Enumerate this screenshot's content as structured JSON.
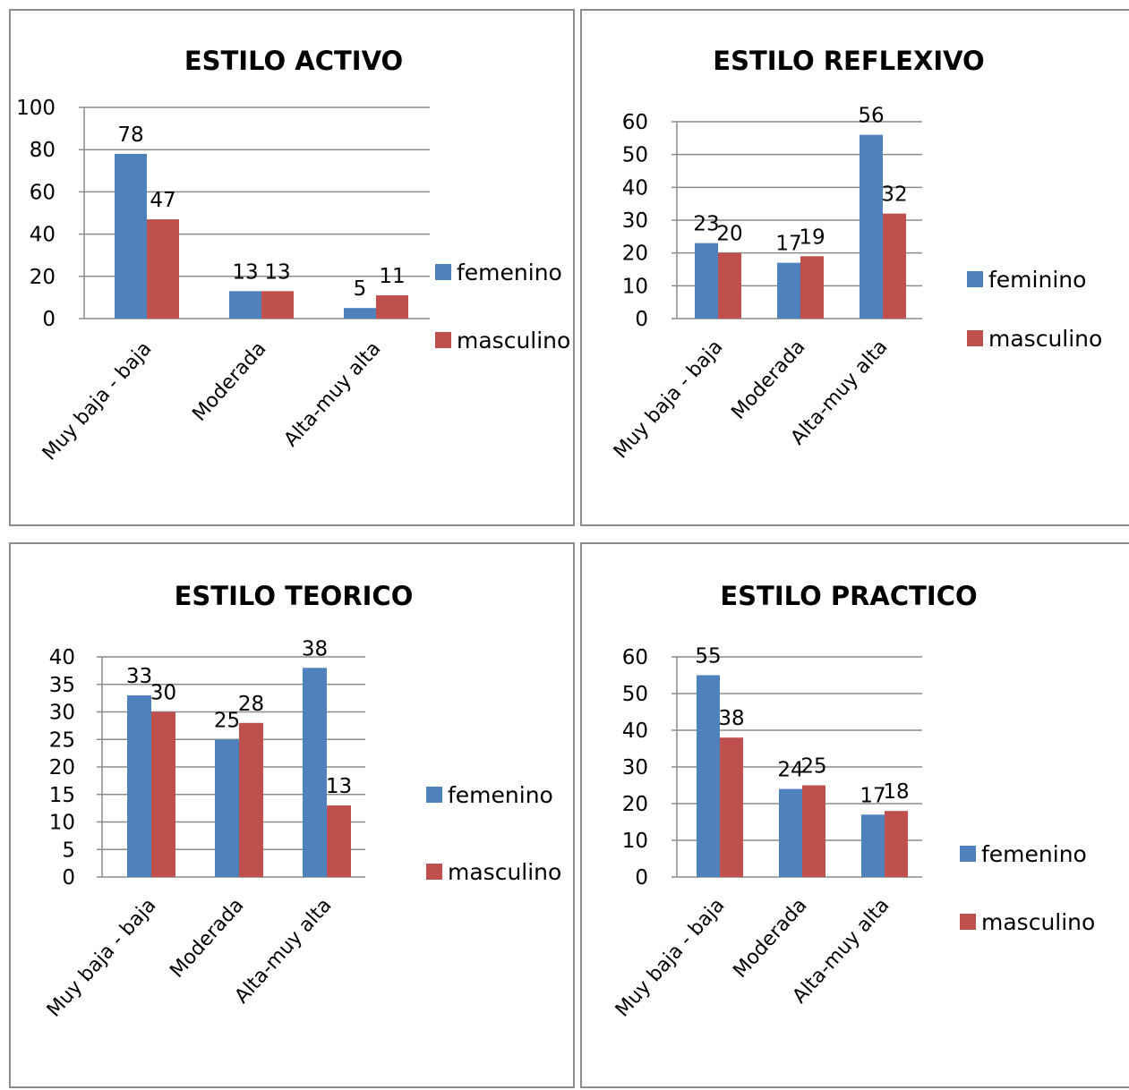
{
  "chart_data": [
    {
      "type": "bar",
      "title": "ESTILO ACTIVO",
      "categories": [
        "Muy baja - baja",
        "Moderada",
        "Alta-muy alta"
      ],
      "series": [
        {
          "name": "femenino",
          "values": [
            78,
            13,
            5
          ],
          "color": "#4f81bd"
        },
        {
          "name": "masculino",
          "values": [
            47,
            13,
            11
          ],
          "color": "#c0504d"
        }
      ],
      "ylim": [
        0,
        100
      ],
      "yticks": [
        0,
        20,
        40,
        60,
        80,
        100
      ],
      "grid": true,
      "legend": "right"
    },
    {
      "type": "bar",
      "title": "ESTILO REFLEXIVO",
      "categories": [
        "Muy baja - baja",
        "Moderada",
        "Alta-muy alta"
      ],
      "series": [
        {
          "name": "feminino",
          "values": [
            23,
            17,
            56
          ],
          "color": "#4f81bd"
        },
        {
          "name": "masculino",
          "values": [
            20,
            19,
            32
          ],
          "color": "#c0504d"
        }
      ],
      "ylim": [
        0,
        60
      ],
      "yticks": [
        0,
        10,
        20,
        30,
        40,
        50,
        60
      ],
      "grid": true,
      "legend": "right"
    },
    {
      "type": "bar",
      "title": "ESTILO TEORICO",
      "categories": [
        "Muy baja - baja",
        "Moderada",
        "Alta-muy alta"
      ],
      "series": [
        {
          "name": "femenino",
          "values": [
            33,
            25,
            38
          ],
          "color": "#4f81bd"
        },
        {
          "name": "masculino",
          "values": [
            30,
            28,
            13
          ],
          "color": "#c0504d"
        }
      ],
      "ylim": [
        0,
        40
      ],
      "yticks": [
        0,
        5,
        10,
        15,
        20,
        25,
        30,
        35,
        40
      ],
      "grid": true,
      "legend": "right"
    },
    {
      "type": "bar",
      "title": "ESTILO PRACTICO",
      "categories": [
        "Muy baja - baja",
        "Moderada",
        "Alta-muy alta"
      ],
      "series": [
        {
          "name": "femenino",
          "values": [
            55,
            24,
            17
          ],
          "color": "#4f81bd"
        },
        {
          "name": "masculino",
          "values": [
            38,
            25,
            18
          ],
          "color": "#c0504d"
        }
      ],
      "ylim": [
        0,
        60
      ],
      "yticks": [
        0,
        10,
        20,
        30,
        40,
        50,
        60
      ],
      "grid": true,
      "legend": "right"
    }
  ]
}
